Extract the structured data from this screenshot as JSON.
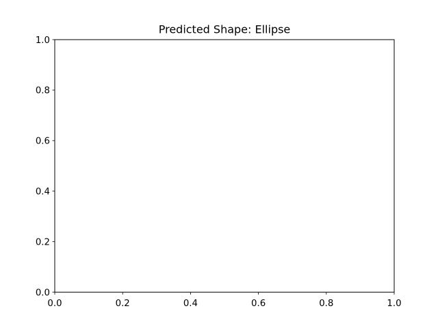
{
  "chart_data": {
    "type": "scatter",
    "title": "Predicted Shape: Ellipse",
    "xlabel": "",
    "ylabel": "",
    "xlim": [
      0,
      1
    ],
    "ylim": [
      0,
      1
    ],
    "xticks": [
      "0.0",
      "0.2",
      "0.4",
      "0.6",
      "0.8",
      "1.0"
    ],
    "yticks": [
      "0.0",
      "0.2",
      "0.4",
      "0.6",
      "0.8",
      "1.0"
    ],
    "series": [],
    "grid": false,
    "legend": "none"
  }
}
